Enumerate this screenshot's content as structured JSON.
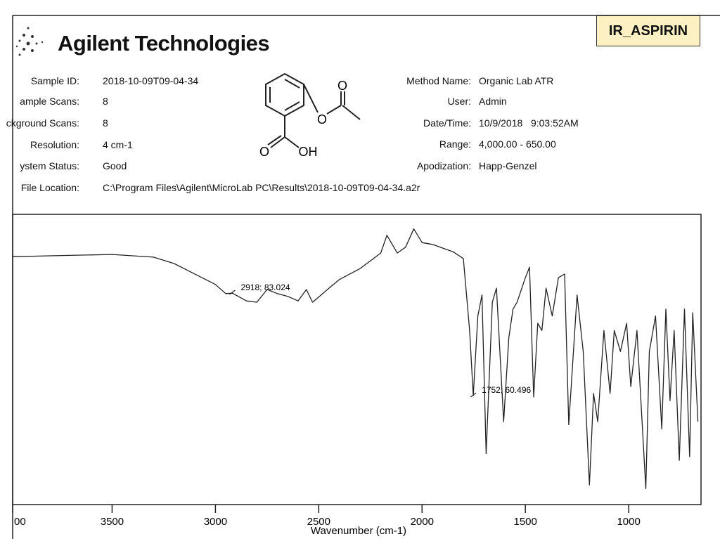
{
  "header": {
    "logo": "Agilent Technologies",
    "badge": "IR_ASPIRIN",
    "left_fields": [
      [
        "Sample ID:",
        "2018-10-09T09-04-34"
      ],
      [
        "ample Scans:",
        "8"
      ],
      [
        "ckground Scans:",
        "8"
      ],
      [
        "Resolution:",
        "4 cm-1"
      ],
      [
        "ystem Status:",
        "Good"
      ],
      [
        "File Location:",
        "C:\\Program Files\\Agilent\\MicroLab PC\\Results\\2018-10-09T09-04-34.a2r"
      ]
    ],
    "right_fields": [
      [
        "Method Name:",
        "Organic Lab ATR"
      ],
      [
        "User:",
        "Admin"
      ],
      [
        "Date/Time:",
        "10/9/2018   9:03:52AM"
      ],
      [
        "Range:",
        "4,000.00 - 650.00"
      ],
      [
        "Apodization:",
        "Happ-Genzel"
      ]
    ],
    "structure_labels": [
      "O",
      "O",
      "O",
      "OH"
    ]
  },
  "chart_data": {
    "type": "line",
    "xlabel": "Wavenumber (cm-1)",
    "color": "#222",
    "xlim": [
      4000,
      650
    ],
    "ylim": [
      36.6,
      100.3
    ],
    "xticks": [
      {
        "value": 4000,
        "label": "00"
      },
      3500,
      3000,
      2500,
      2000,
      1500,
      1000
    ],
    "x": [
      3980,
      3800,
      3500,
      3300,
      3200,
      3100,
      3000,
      2950,
      2918,
      2850,
      2800,
      2750,
      2700,
      2650,
      2600,
      2560,
      2530,
      2450,
      2400,
      2300,
      2200,
      2170,
      2120,
      2080,
      2040,
      2000,
      1950,
      1850,
      1800,
      1770,
      1752,
      1730,
      1710,
      1690,
      1660,
      1640,
      1605,
      1580,
      1560,
      1540,
      1500,
      1480,
      1460,
      1440,
      1420,
      1400,
      1370,
      1340,
      1310,
      1290,
      1250,
      1220,
      1190,
      1170,
      1150,
      1120,
      1090,
      1070,
      1040,
      1010,
      990,
      960,
      917,
      900,
      870,
      840,
      820,
      800,
      780,
      755,
      730,
      705,
      690,
      665
    ],
    "values": [
      91.0,
      91.2,
      91.5,
      90.9,
      89.5,
      87.2,
      84.9,
      82.9,
      83.0,
      81.3,
      81.0,
      83.8,
      82.9,
      82.3,
      81.3,
      83.8,
      81.0,
      84.1,
      86.0,
      88.4,
      91.8,
      95.7,
      91.8,
      93.1,
      97.1,
      94.1,
      93.7,
      92.1,
      90.6,
      74.8,
      60.5,
      78.0,
      82.6,
      47.8,
      81.0,
      84.1,
      54.8,
      73.3,
      79.5,
      81.0,
      86.4,
      88.7,
      60.2,
      76.4,
      74.8,
      84.1,
      78.0,
      86.4,
      87.2,
      54.1,
      82.6,
      70.2,
      40.9,
      61.0,
      54.8,
      74.8,
      61.0,
      74.8,
      70.2,
      76.4,
      62.5,
      74.8,
      40.1,
      70.2,
      78.0,
      53.2,
      79.5,
      59.4,
      74.8,
      46.3,
      79.5,
      47.1,
      78.7,
      54.8
    ],
    "annotations": [
      {
        "text": "2918; 83.024",
        "x": 2918,
        "y": 83.024
      },
      {
        "text": "1752; 60.496",
        "x": 1752,
        "y": 60.496
      }
    ]
  }
}
